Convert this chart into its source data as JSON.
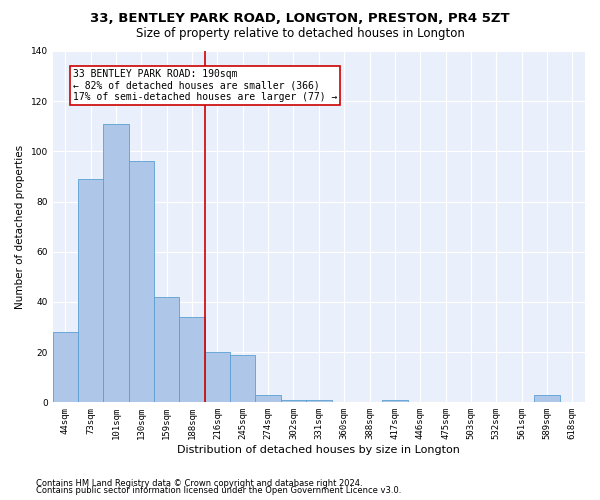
{
  "title1": "33, BENTLEY PARK ROAD, LONGTON, PRESTON, PR4 5ZT",
  "title2": "Size of property relative to detached houses in Longton",
  "xlabel": "Distribution of detached houses by size in Longton",
  "ylabel": "Number of detached properties",
  "bar_labels": [
    "44sqm",
    "73sqm",
    "101sqm",
    "130sqm",
    "159sqm",
    "188sqm",
    "216sqm",
    "245sqm",
    "274sqm",
    "302sqm",
    "331sqm",
    "360sqm",
    "388sqm",
    "417sqm",
    "446sqm",
    "475sqm",
    "503sqm",
    "532sqm",
    "561sqm",
    "589sqm",
    "618sqm"
  ],
  "bar_values": [
    28,
    89,
    111,
    96,
    42,
    34,
    20,
    19,
    3,
    1,
    1,
    0,
    0,
    1,
    0,
    0,
    0,
    0,
    0,
    3,
    0
  ],
  "bar_color": "#aec6e8",
  "bar_edgecolor": "#5a9fd4",
  "property_line_color": "#cc0000",
  "annotation_text": "33 BENTLEY PARK ROAD: 190sqm\n← 82% of detached houses are smaller (366)\n17% of semi-detached houses are larger (77) →",
  "annotation_box_color": "#cc0000",
  "ylim": [
    0,
    140
  ],
  "yticks": [
    0,
    20,
    40,
    60,
    80,
    100,
    120,
    140
  ],
  "footer1": "Contains HM Land Registry data © Crown copyright and database right 2024.",
  "footer2": "Contains public sector information licensed under the Open Government Licence v3.0.",
  "bg_color": "#eaf0fb",
  "grid_color": "#ffffff",
  "title1_fontsize": 9.5,
  "title2_fontsize": 8.5,
  "xlabel_fontsize": 8,
  "ylabel_fontsize": 7.5,
  "tick_fontsize": 6.5,
  "annotation_fontsize": 7,
  "footer_fontsize": 6
}
